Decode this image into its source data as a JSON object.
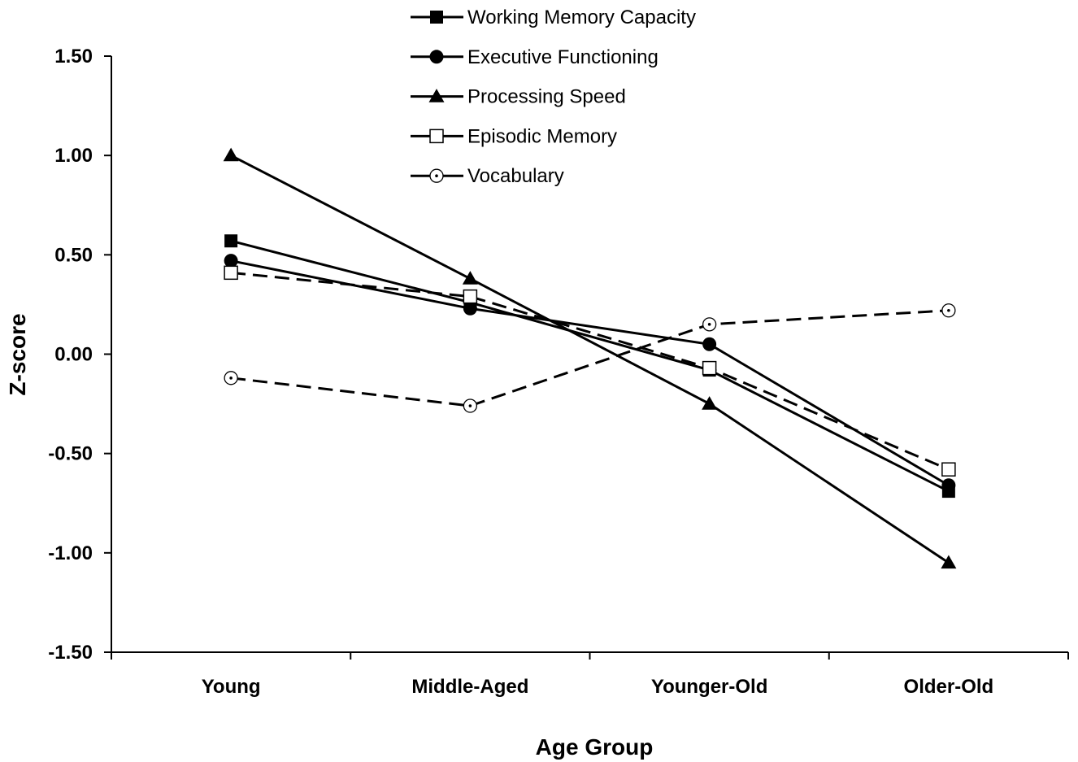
{
  "chart_data": {
    "type": "line",
    "title": "",
    "xlabel": "Age Group",
    "ylabel": "Z-score",
    "categories": [
      "Young",
      "Middle-Aged",
      "Younger-Old",
      "Older-Old"
    ],
    "ylim": [
      -1.5,
      1.5
    ],
    "yticks": [
      "1.50",
      "1.00",
      "0.50",
      "0.00",
      "-0.50",
      "-1.00",
      "-1.50"
    ],
    "ytick_values": [
      1.5,
      1.0,
      0.5,
      0.0,
      -0.5,
      -1.0,
      -1.5
    ],
    "grid": false,
    "legend_position": "top",
    "series": [
      {
        "name": "Working Memory Capacity",
        "values": [
          0.57,
          0.26,
          -0.08,
          -0.69
        ],
        "marker": "square-filled",
        "line": "solid"
      },
      {
        "name": "Executive Functioning",
        "values": [
          0.47,
          0.23,
          0.05,
          -0.66
        ],
        "marker": "circle-filled",
        "line": "solid"
      },
      {
        "name": "Processing Speed",
        "values": [
          1.0,
          0.38,
          -0.25,
          -1.05
        ],
        "marker": "triangle-filled",
        "line": "solid"
      },
      {
        "name": "Episodic Memory",
        "values": [
          0.41,
          0.29,
          -0.07,
          -0.58
        ],
        "marker": "square-open",
        "line": "dashed"
      },
      {
        "name": "Vocabulary",
        "values": [
          -0.12,
          -0.26,
          0.15,
          0.22
        ],
        "marker": "circle-open-dot",
        "line": "dashed"
      }
    ]
  }
}
